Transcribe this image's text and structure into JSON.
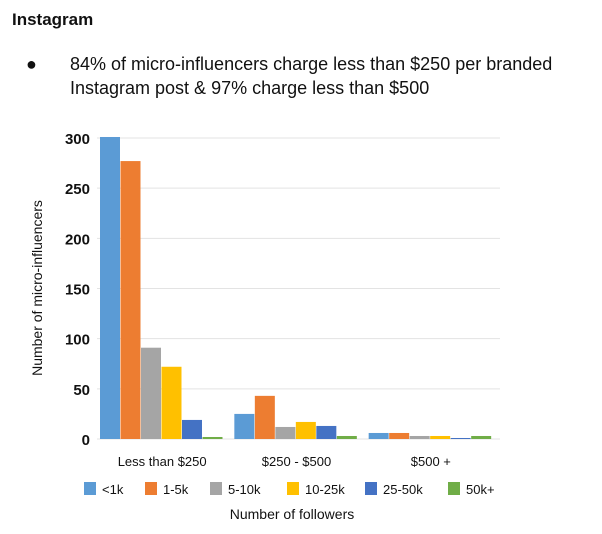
{
  "title": "Instagram",
  "bullet": "84% of micro-influencers charge less than $250 per branded Instagram post & 97% charge less than $500",
  "chart_data": {
    "type": "bar",
    "categories": [
      "Less than $250",
      "$250 - $500",
      "$500 +"
    ],
    "series": [
      {
        "name": "<1k",
        "color": "#5b9bd5",
        "values": [
          301,
          25,
          6
        ]
      },
      {
        "name": "1-5k",
        "color": "#ed7d31",
        "values": [
          277,
          43,
          6
        ]
      },
      {
        "name": "5-10k",
        "color": "#a5a5a5",
        "values": [
          91,
          12,
          3
        ]
      },
      {
        "name": "10-25k",
        "color": "#ffc000",
        "values": [
          72,
          17,
          3
        ]
      },
      {
        "name": "25-50k",
        "color": "#4472c4",
        "values": [
          19,
          13,
          1
        ]
      },
      {
        "name": "50k+",
        "color": "#70ad47",
        "values": [
          2,
          3,
          3
        ]
      }
    ],
    "xlabel": "Number of followers",
    "ylabel": "Number of micro-influencers",
    "ylim": [
      0,
      300
    ],
    "yticks": [
      "0",
      "50",
      "100",
      "150",
      "200",
      "250",
      "300"
    ],
    "grid": true,
    "legend": "bottom"
  }
}
